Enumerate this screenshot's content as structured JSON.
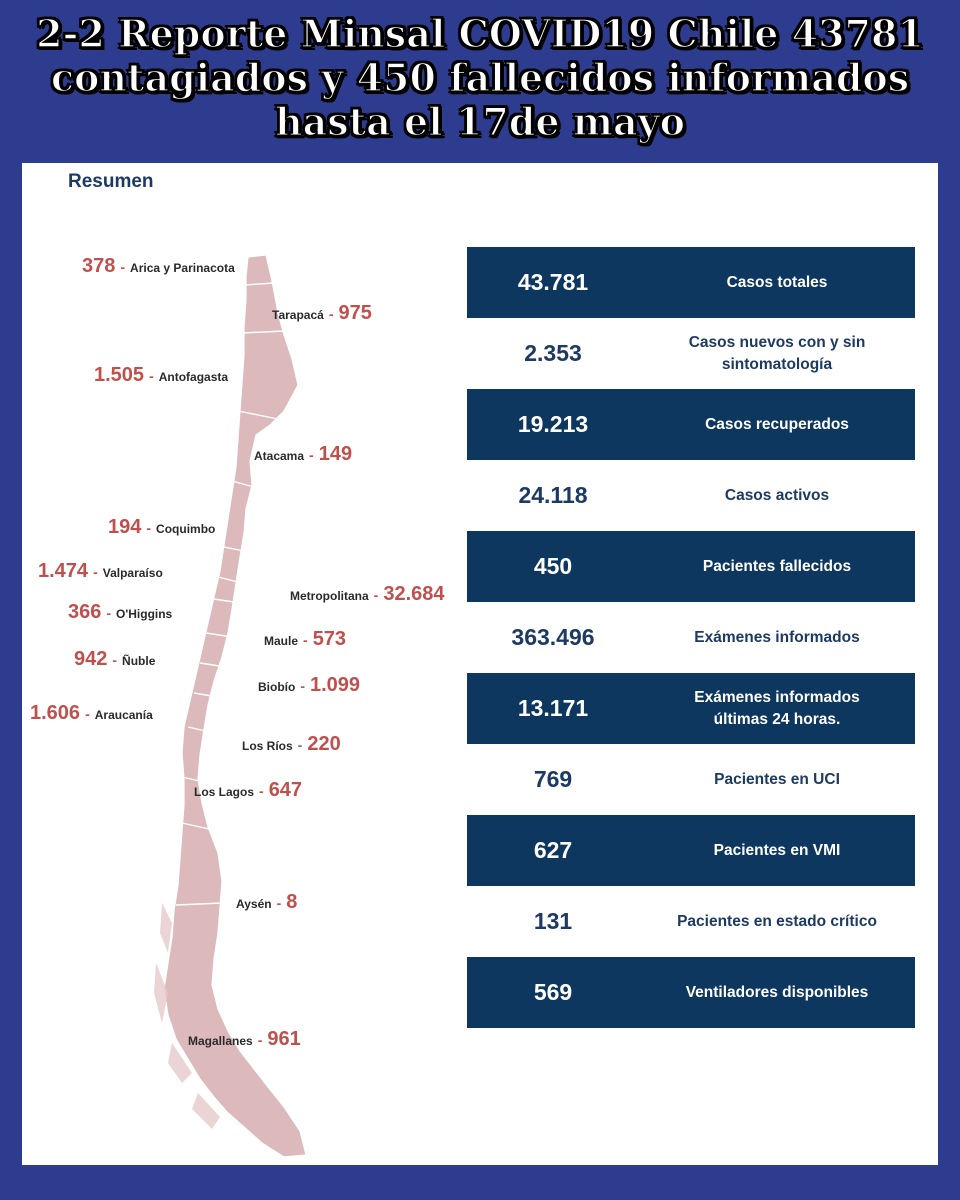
{
  "headline": {
    "line1": "2-2 Reporte Minsal COVID19 Chile 43781",
    "line2": "contagiados y 450 fallecidos informados",
    "line3": "hasta el 17de mayo"
  },
  "section_title": "Resumen",
  "regions": [
    {
      "name": "Arica y Parinacota",
      "value": "378"
    },
    {
      "name": "Tarapacá",
      "value": "975"
    },
    {
      "name": "Antofagasta",
      "value": "1.505"
    },
    {
      "name": "Atacama",
      "value": "149"
    },
    {
      "name": "Coquimbo",
      "value": "194"
    },
    {
      "name": "Valparaíso",
      "value": "1.474"
    },
    {
      "name": "Metropolitana",
      "value": "32.684"
    },
    {
      "name": "O'Higgins",
      "value": "366"
    },
    {
      "name": "Maule",
      "value": "573"
    },
    {
      "name": "Ñuble",
      "value": "942"
    },
    {
      "name": "Biobío",
      "value": "1.099"
    },
    {
      "name": "Araucanía",
      "value": "1.606"
    },
    {
      "name": "Los Ríos",
      "value": "220"
    },
    {
      "name": "Los Lagos",
      "value": "647"
    },
    {
      "name": "Aysén",
      "value": "8"
    },
    {
      "name": "Magallanes",
      "value": "961"
    }
  ],
  "stats": [
    {
      "value": "43.781",
      "label": "Casos totales",
      "style": "dark"
    },
    {
      "value": "2.353",
      "label": "Casos nuevos con y sin\nsintomatología",
      "style": "light"
    },
    {
      "value": "19.213",
      "label": "Casos recuperados",
      "style": "dark"
    },
    {
      "value": "24.118",
      "label": "Casos activos",
      "style": "light"
    },
    {
      "value": "450",
      "label": "Pacientes fallecidos",
      "style": "dark"
    },
    {
      "value": "363.496",
      "label": "Exámenes informados",
      "style": "light"
    },
    {
      "value": "13.171",
      "label": "Exámenes informados\núltimas 24 horas.",
      "style": "dark"
    },
    {
      "value": "769",
      "label": "Pacientes en UCI",
      "style": "light"
    },
    {
      "value": "627",
      "label": "Pacientes en VMI",
      "style": "dark"
    },
    {
      "value": "131",
      "label": "Pacientes en estado crítico",
      "style": "light"
    },
    {
      "value": "569",
      "label": "Ventiladores disponibles",
      "style": "dark"
    }
  ],
  "colors": {
    "background": "#2e3c8f",
    "dark_row": "#0e375f",
    "value_red": "#c0504d",
    "map_fill": "#d9b3b5"
  }
}
